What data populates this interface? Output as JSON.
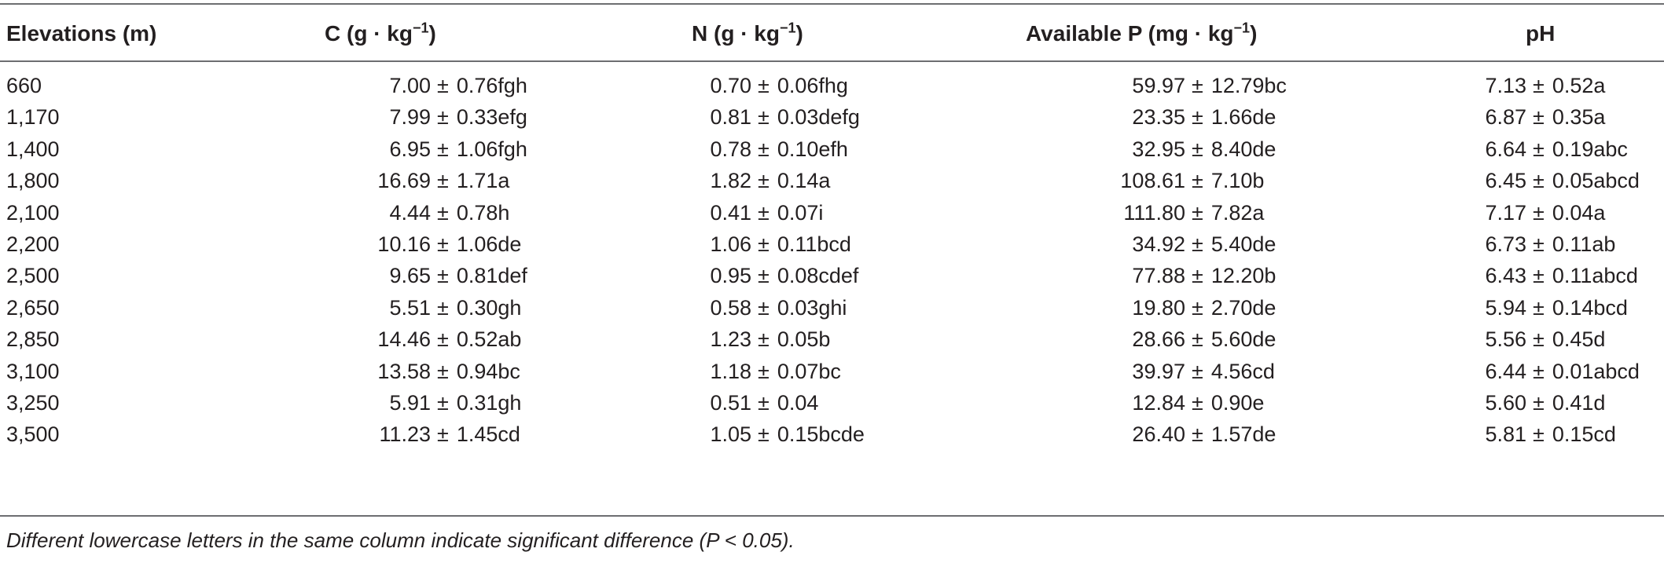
{
  "table": {
    "headers": {
      "elevation": "Elevations (m)",
      "c_base": "C (g · kg",
      "n_base": "N (g · kg",
      "p_base": "Available P (mg · kg",
      "exp": "−1",
      "close": ")",
      "ph": "pH"
    },
    "pm": "±",
    "rows": [
      {
        "elev": "660",
        "c": "7.00",
        "c_sd": "0.76fgh",
        "n": "0.70",
        "n_sd": "0.06fhg",
        "p": "59.97",
        "p_sd": "12.79bc",
        "ph": "7.13",
        "ph_sd": "0.52a"
      },
      {
        "elev": "1,170",
        "c": "7.99",
        "c_sd": "0.33efg",
        "n": "0.81",
        "n_sd": "0.03defg",
        "p": "23.35",
        "p_sd": "1.66de",
        "ph": "6.87",
        "ph_sd": "0.35a"
      },
      {
        "elev": "1,400",
        "c": "6.95",
        "c_sd": "1.06fgh",
        "n": "0.78",
        "n_sd": "0.10efh",
        "p": "32.95",
        "p_sd": "8.40de",
        "ph": "6.64",
        "ph_sd": "0.19abc"
      },
      {
        "elev": "1,800",
        "c": "16.69",
        "c_sd": "1.71a",
        "n": "1.82",
        "n_sd": "0.14a",
        "p": "108.61",
        "p_sd": "7.10b",
        "ph": "6.45",
        "ph_sd": "0.05abcd"
      },
      {
        "elev": "2,100",
        "c": "4.44",
        "c_sd": "0.78h",
        "n": "0.41",
        "n_sd": "0.07i",
        "p": "111.80",
        "p_sd": "7.82a",
        "ph": "7.17",
        "ph_sd": "0.04a"
      },
      {
        "elev": "2,200",
        "c": "10.16",
        "c_sd": "1.06de",
        "n": "1.06",
        "n_sd": "0.11bcd",
        "p": "34.92",
        "p_sd": "5.40de",
        "ph": "6.73",
        "ph_sd": "0.11ab"
      },
      {
        "elev": "2,500",
        "c": "9.65",
        "c_sd": "0.81def",
        "n": "0.95",
        "n_sd": "0.08cdef",
        "p": "77.88",
        "p_sd": "12.20b",
        "ph": "6.43",
        "ph_sd": "0.11abcd"
      },
      {
        "elev": "2,650",
        "c": "5.51",
        "c_sd": "0.30gh",
        "n": "0.58",
        "n_sd": "0.03ghi",
        "p": "19.80",
        "p_sd": "2.70de",
        "ph": "5.94",
        "ph_sd": "0.14bcd"
      },
      {
        "elev": "2,850",
        "c": "14.46",
        "c_sd": "0.52ab",
        "n": "1.23",
        "n_sd": "0.05b",
        "p": "28.66",
        "p_sd": "5.60de",
        "ph": "5.56",
        "ph_sd": "0.45d"
      },
      {
        "elev": "3,100",
        "c": "13.58",
        "c_sd": "0.94bc",
        "n": "1.18",
        "n_sd": "0.07bc",
        "p": "39.97",
        "p_sd": "4.56cd",
        "ph": "6.44",
        "ph_sd": "0.01abcd"
      },
      {
        "elev": "3,250",
        "c": "5.91",
        "c_sd": "0.31gh",
        "n": "0.51",
        "n_sd": "0.04",
        "p": "12.84",
        "p_sd": "0.90e",
        "ph": "5.60",
        "ph_sd": "0.41d"
      },
      {
        "elev": "3,500",
        "c": "11.23",
        "c_sd": "1.45cd",
        "n": "1.05",
        "n_sd": "0.15bcde",
        "p": "26.40",
        "p_sd": "1.57de",
        "ph": "5.81",
        "ph_sd": "0.15cd"
      }
    ],
    "footnote": "Different lowercase letters in the same column indicate significant difference (P < 0.05)."
  }
}
